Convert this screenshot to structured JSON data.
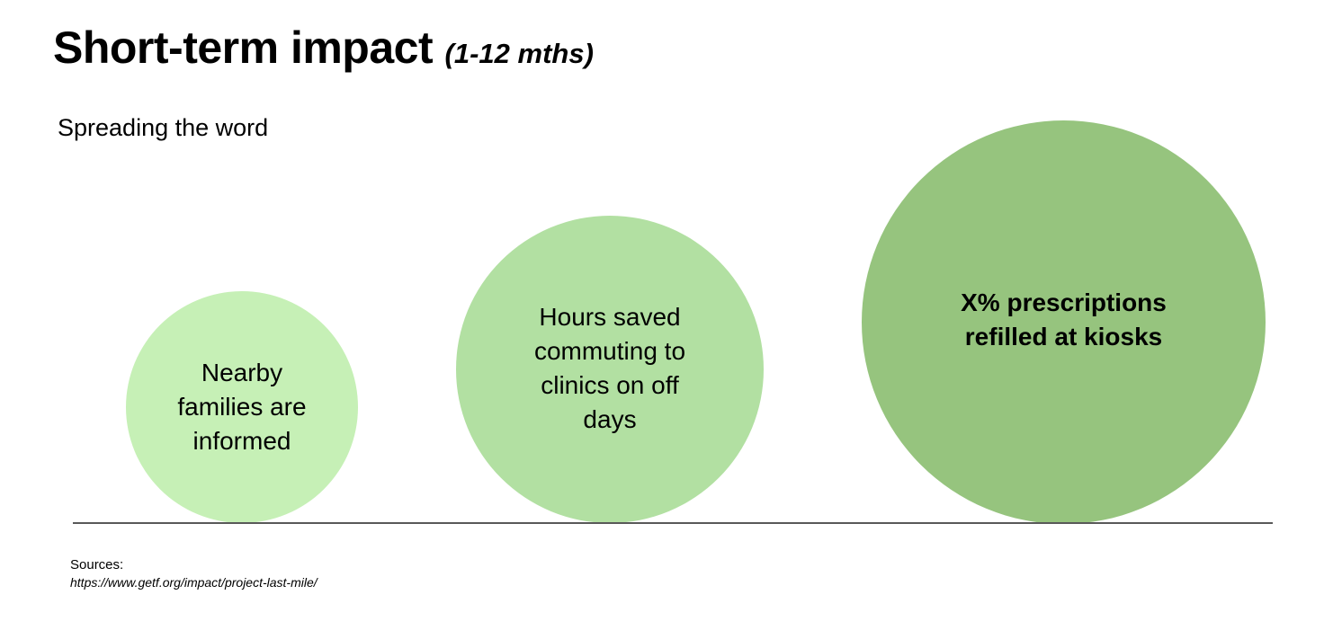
{
  "title": {
    "main": "Short-term impact",
    "sub": "(1-12 mths)"
  },
  "subtitle": "Spreading the word",
  "circles": [
    {
      "label": "Nearby families are informed",
      "color": "#c6f0b6"
    },
    {
      "label": "Hours saved commuting to clinics on off days",
      "color": "#b2e0a2"
    },
    {
      "label": "X% prescriptions refilled at kiosks",
      "color": "#96c47e"
    }
  ],
  "sources": {
    "label": "Sources:",
    "url": "https://www.getf.org/impact/project-last-mile/"
  },
  "colors": {
    "baseline": "#595959",
    "text": "#000000",
    "background": "#ffffff"
  }
}
